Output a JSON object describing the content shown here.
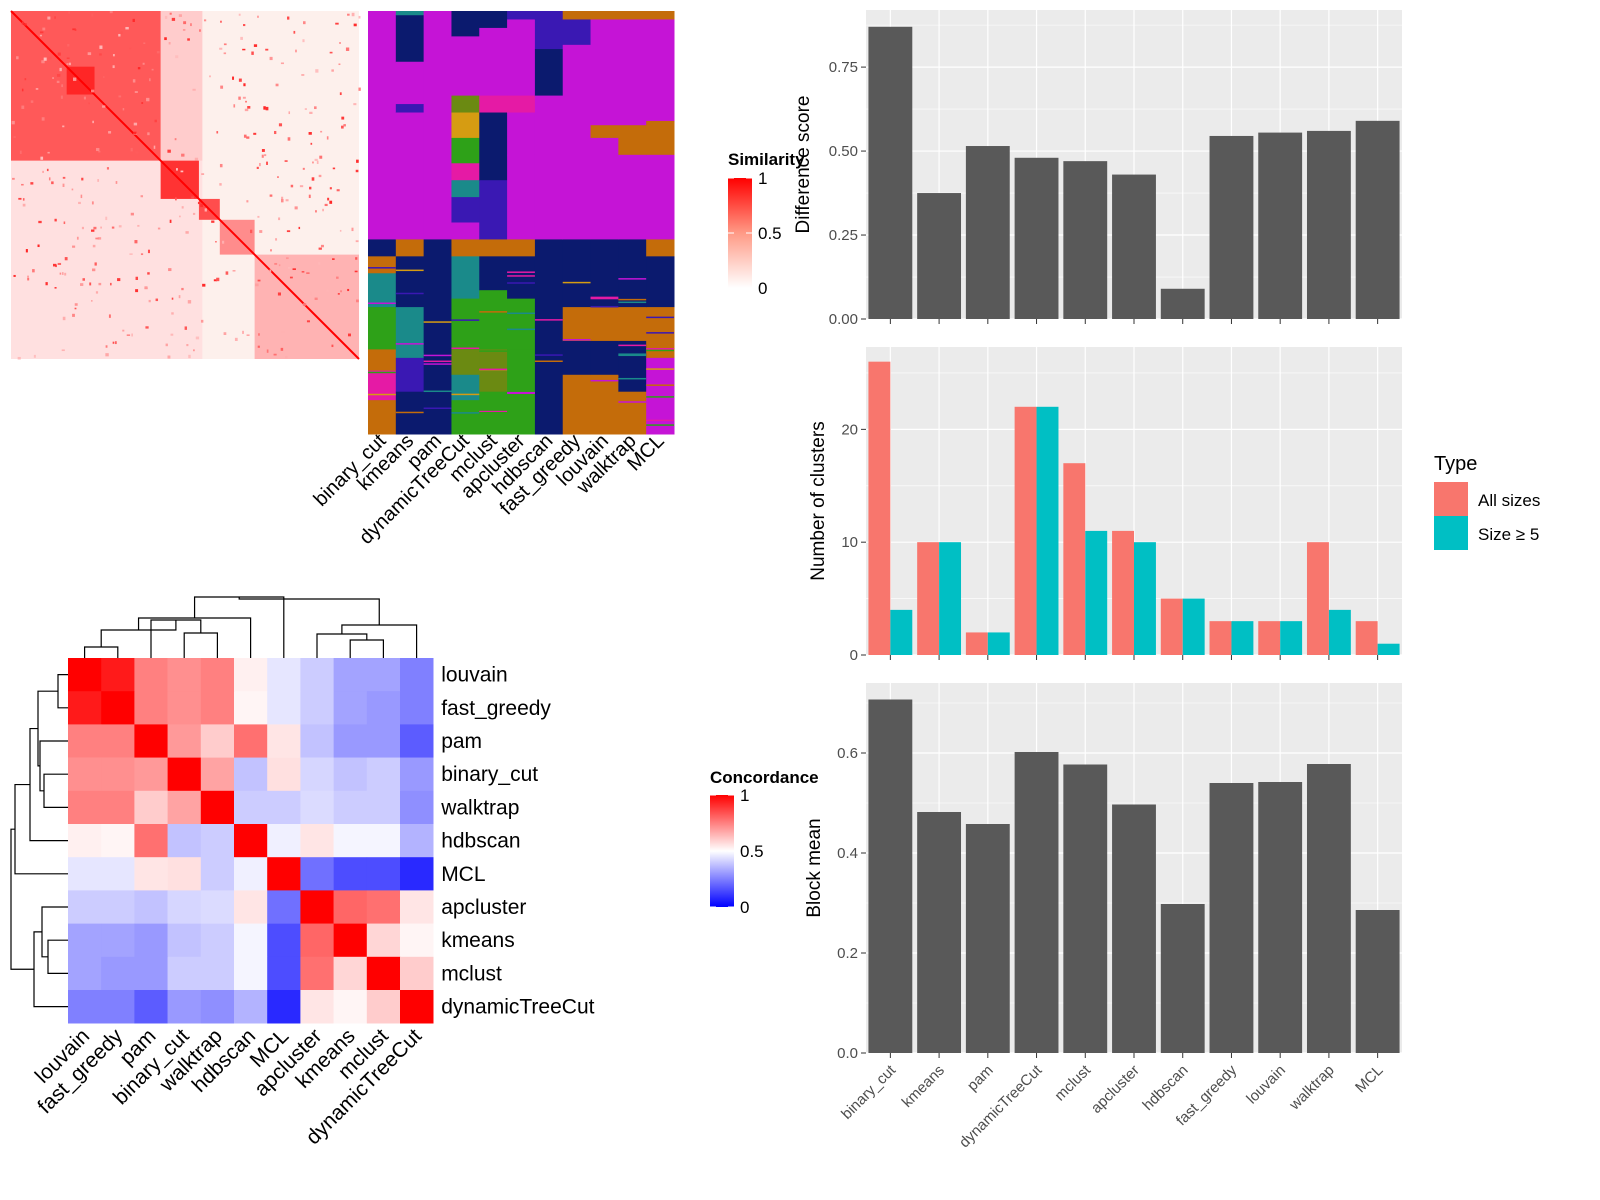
{
  "chart_data": [
    {
      "type": "heatmap",
      "panel": "similarity-heatmap",
      "legend": {
        "title": "Similarity",
        "ticks": [
          1,
          0.5,
          0
        ],
        "colors": {
          "high": "#ff0000",
          "low": "#ffffff"
        }
      },
      "blocks": [
        {
          "start": 0.0,
          "end": 0.43,
          "value": 0.65
        },
        {
          "start": 0.16,
          "end": 0.24,
          "value": 0.85
        },
        {
          "start": 0.43,
          "end": 0.54,
          "value": 0.8
        },
        {
          "start": 0.54,
          "end": 0.6,
          "value": 0.7
        },
        {
          "start": 0.6,
          "end": 0.7,
          "value": 0.45
        },
        {
          "start": 0.7,
          "end": 1.0,
          "value": 0.3
        }
      ]
    },
    {
      "type": "heatmap",
      "panel": "cluster-assignments",
      "columns": [
        "binary_cut",
        "kmeans",
        "pam",
        "dynamicTreeCut",
        "mclust",
        "apcluster",
        "hdbscan",
        "fast_greedy",
        "louvain",
        "walktrap",
        "MCL"
      ],
      "colors": {
        "magenta": "#c514d6",
        "navy": "#0b1a6e",
        "orange": "#c46c0a",
        "teal": "#1a8a8a",
        "green": "#2ea118",
        "pink": "#e51aa5",
        "olive": "#6b8a12",
        "purple": "#3a18b3",
        "gold": "#d69c12"
      }
    },
    {
      "type": "heatmap",
      "panel": "concordance-heatmap",
      "rows": [
        "louvain",
        "fast_greedy",
        "pam",
        "binary_cut",
        "walktrap",
        "hdbscan",
        "MCL",
        "apcluster",
        "kmeans",
        "mclust",
        "dynamicTreeCut"
      ],
      "columns": [
        "louvain",
        "fast_greedy",
        "pam",
        "binary_cut",
        "walktrap",
        "hdbscan",
        "MCL",
        "apcluster",
        "kmeans",
        "mclust",
        "dynamicTreeCut"
      ],
      "values": [
        [
          1.0,
          0.95,
          0.75,
          0.72,
          0.75,
          0.53,
          0.45,
          0.4,
          0.32,
          0.32,
          0.25
        ],
        [
          0.95,
          1.0,
          0.75,
          0.72,
          0.75,
          0.52,
          0.45,
          0.4,
          0.32,
          0.3,
          0.25
        ],
        [
          0.75,
          0.75,
          1.0,
          0.7,
          0.6,
          0.78,
          0.55,
          0.38,
          0.3,
          0.3,
          0.18
        ],
        [
          0.72,
          0.72,
          0.7,
          1.0,
          0.68,
          0.38,
          0.56,
          0.42,
          0.38,
          0.4,
          0.3
        ],
        [
          0.75,
          0.75,
          0.6,
          0.68,
          1.0,
          0.4,
          0.4,
          0.43,
          0.4,
          0.4,
          0.28
        ],
        [
          0.53,
          0.52,
          0.78,
          0.38,
          0.4,
          1.0,
          0.47,
          0.55,
          0.48,
          0.48,
          0.35
        ],
        [
          0.45,
          0.45,
          0.55,
          0.56,
          0.4,
          0.47,
          1.0,
          0.22,
          0.15,
          0.15,
          0.08
        ],
        [
          0.4,
          0.4,
          0.38,
          0.42,
          0.43,
          0.55,
          0.22,
          1.0,
          0.8,
          0.78,
          0.55
        ],
        [
          0.32,
          0.32,
          0.3,
          0.38,
          0.4,
          0.48,
          0.15,
          0.8,
          1.0,
          0.58,
          0.52
        ],
        [
          0.32,
          0.3,
          0.3,
          0.4,
          0.4,
          0.48,
          0.15,
          0.78,
          0.58,
          1.0,
          0.6
        ],
        [
          0.25,
          0.25,
          0.18,
          0.3,
          0.28,
          0.35,
          0.08,
          0.55,
          0.52,
          0.6,
          1.0
        ]
      ],
      "legend": {
        "title": "Concordance",
        "ticks": [
          1,
          0.5,
          0
        ],
        "colors": {
          "high": "#ff0000",
          "mid": "#ffffff",
          "low": "#0000ff"
        }
      }
    },
    {
      "type": "bar",
      "panel": "difference-score",
      "categories": [
        "binary_cut",
        "kmeans",
        "pam",
        "dynamicTreeCut",
        "mclust",
        "apcluster",
        "hdbscan",
        "fast_greedy",
        "louvain",
        "walktrap",
        "MCL"
      ],
      "values": [
        0.87,
        0.375,
        0.515,
        0.48,
        0.47,
        0.43,
        0.09,
        0.545,
        0.555,
        0.56,
        0.59
      ],
      "xlabel": "",
      "ylabel": "Difference score",
      "ylim": [
        0,
        0.92
      ],
      "yticks": [
        "0.00",
        "0.25",
        "0.50",
        "0.75"
      ],
      "color": "#595959"
    },
    {
      "type": "bar",
      "panel": "number-of-clusters",
      "categories": [
        "binary_cut",
        "kmeans",
        "pam",
        "dynamicTreeCut",
        "mclust",
        "apcluster",
        "hdbscan",
        "fast_greedy",
        "louvain",
        "walktrap",
        "MCL"
      ],
      "series": [
        {
          "name": "All sizes",
          "values": [
            26,
            10,
            2,
            22,
            17,
            11,
            5,
            3,
            3,
            10,
            3
          ],
          "color": "#f8766d"
        },
        {
          "name": "Size ≥ 5",
          "values": [
            4,
            10,
            2,
            22,
            11,
            10,
            5,
            3,
            3,
            4,
            1
          ],
          "color": "#00bfc4"
        }
      ],
      "xlabel": "",
      "ylabel": "Number of clusters",
      "ylim": [
        0,
        27.3
      ],
      "yticks": [
        "0",
        "10",
        "20"
      ],
      "legend_title": "Type",
      "legend_position": "right"
    },
    {
      "type": "bar",
      "panel": "block-mean",
      "categories": [
        "binary_cut",
        "kmeans",
        "pam",
        "dynamicTreeCut",
        "mclust",
        "apcluster",
        "hdbscan",
        "fast_greedy",
        "louvain",
        "walktrap",
        "MCL"
      ],
      "values": [
        0.707,
        0.482,
        0.458,
        0.602,
        0.577,
        0.497,
        0.298,
        0.54,
        0.542,
        0.578,
        0.286
      ],
      "xlabel": "",
      "ylabel": "Block mean",
      "ylim": [
        0,
        0.74
      ],
      "yticks": [
        "0.0",
        "0.2",
        "0.4",
        "0.6"
      ],
      "color": "#595959"
    }
  ]
}
